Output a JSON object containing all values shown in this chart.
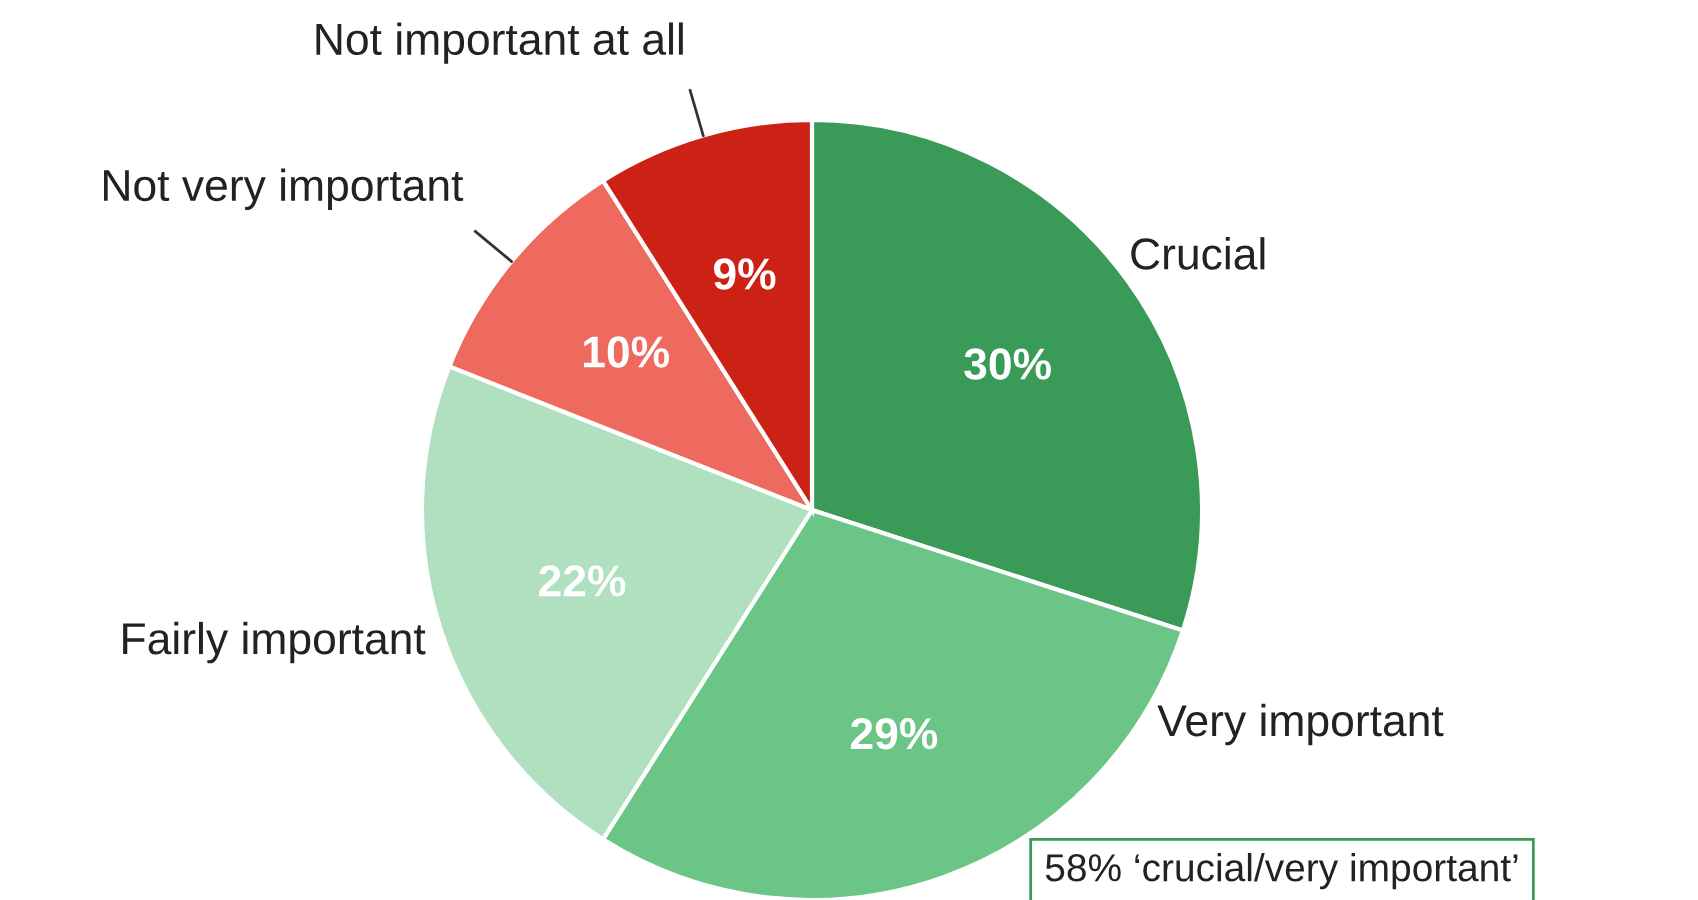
{
  "chart_data": {
    "type": "pie",
    "categories": [
      "Crucial",
      "Very important",
      "Fairly important",
      "Not very important",
      "Not important at all"
    ],
    "values": [
      30,
      29,
      22,
      10,
      9
    ],
    "value_labels": [
      "30%",
      "29%",
      "22%",
      "10%",
      "9%"
    ],
    "colors": [
      "#3a9a58",
      "#6bc587",
      "#b0e0bf",
      "#ee6a5f",
      "#cc2216"
    ],
    "annotations": [
      "58% ‘crucial/very important’"
    ]
  }
}
